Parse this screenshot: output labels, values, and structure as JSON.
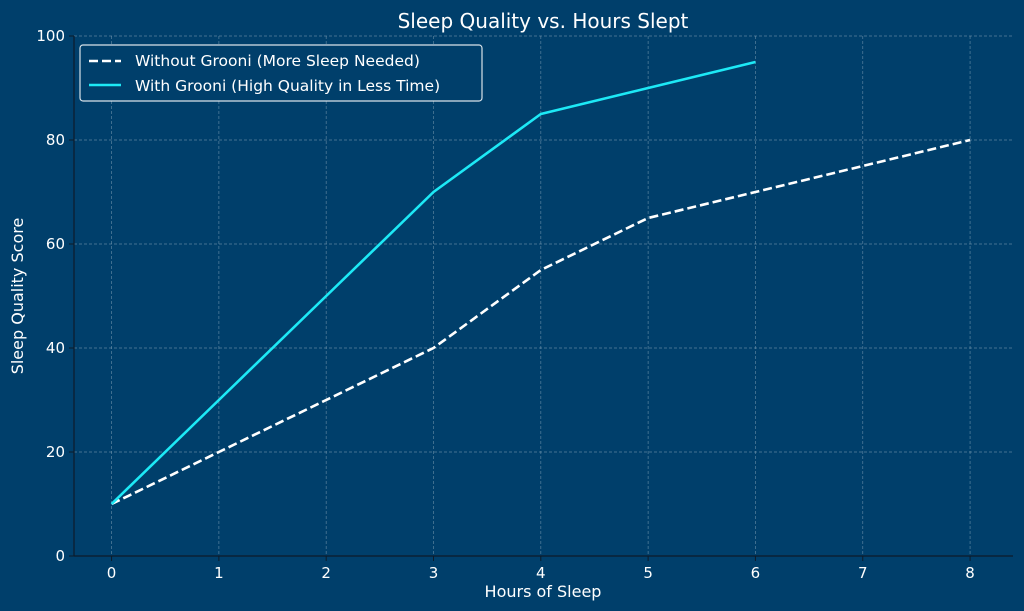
{
  "chart_data": {
    "type": "line",
    "title": "Sleep Quality vs. Hours Slept",
    "xlabel": "Hours of Sleep",
    "ylabel": "Sleep Quality Score",
    "xlim": [
      -0.35,
      8.4
    ],
    "ylim": [
      0,
      100
    ],
    "x_ticks": [
      0,
      1,
      2,
      3,
      4,
      5,
      6,
      7,
      8
    ],
    "y_ticks": [
      0,
      20,
      40,
      60,
      80,
      100
    ],
    "grid": true,
    "legend_position": "top-left",
    "colors": {
      "background": "#003f6b",
      "grid": "#7f9fb5",
      "axis": "#0d1b2a",
      "text": "#ffffff"
    },
    "series": [
      {
        "name": "Without Grooni (More Sleep Needed)",
        "style": "dashed",
        "color": "#ffffff",
        "x": [
          0,
          1,
          2,
          3,
          4,
          5,
          6,
          7,
          8
        ],
        "y": [
          10,
          20,
          30,
          40,
          55,
          65,
          70,
          75,
          80
        ]
      },
      {
        "name": "With Grooni (High Quality in Less Time)",
        "style": "solid",
        "color": "#1de9f6",
        "x": [
          0,
          1,
          2,
          3,
          4,
          5,
          6
        ],
        "y": [
          10,
          30,
          50,
          70,
          85,
          90,
          95
        ]
      }
    ]
  }
}
